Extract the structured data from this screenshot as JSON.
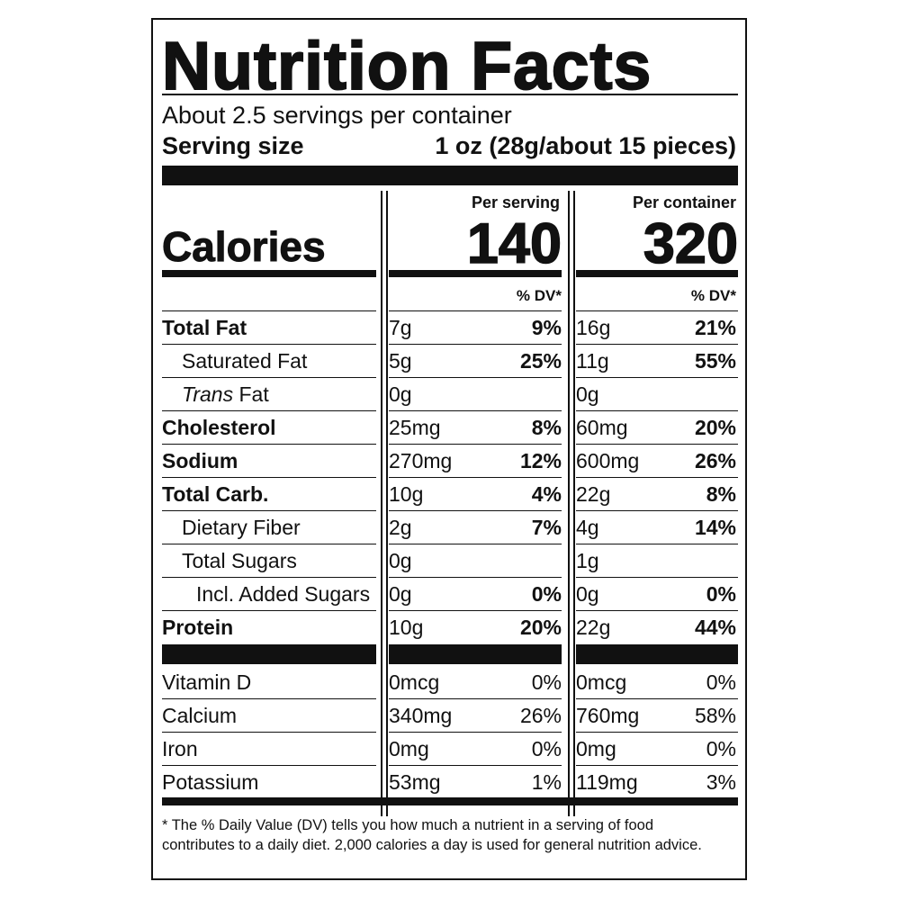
{
  "label": {
    "title": "Nutrition Facts",
    "servings_per_container": "About 2.5 servings per container",
    "serving_size_label": "Serving size",
    "serving_size_value": "1 oz (28g/about 15 pieces)",
    "per_serving_header": "Per serving",
    "per_container_header": "Per container",
    "calories_label": "Calories",
    "calories_per_serving": "140",
    "calories_per_container": "320",
    "dv_header": "% DV*",
    "nutrients": [
      {
        "name": "Total Fat",
        "serving_amount": "7g",
        "serving_dv": "9%",
        "container_amount": "16g",
        "container_dv": "21%"
      },
      {
        "name": "Saturated Fat",
        "serving_amount": "5g",
        "serving_dv": "25%",
        "container_amount": "11g",
        "container_dv": "55%"
      },
      {
        "name_italic": "Trans",
        "name": " Fat",
        "serving_amount": "0g",
        "serving_dv": "",
        "container_amount": "0g",
        "container_dv": ""
      },
      {
        "name": "Cholesterol",
        "serving_amount": "25mg",
        "serving_dv": "8%",
        "container_amount": "60mg",
        "container_dv": "20%"
      },
      {
        "name": "Sodium",
        "serving_amount": "270mg",
        "serving_dv": "12%",
        "container_amount": "600mg",
        "container_dv": "26%"
      },
      {
        "name": "Total Carb.",
        "serving_amount": "10g",
        "serving_dv": "4%",
        "container_amount": "22g",
        "container_dv": "8%"
      },
      {
        "name": "Dietary Fiber",
        "serving_amount": "2g",
        "serving_dv": "7%",
        "container_amount": "4g",
        "container_dv": "14%"
      },
      {
        "name": "Total Sugars",
        "serving_amount": "0g",
        "serving_dv": "",
        "container_amount": "1g",
        "container_dv": ""
      },
      {
        "name": "Incl. Added Sugars",
        "serving_amount": "0g",
        "serving_dv": "0%",
        "container_amount": "0g",
        "container_dv": "0%"
      },
      {
        "name": "Protein",
        "serving_amount": "10g",
        "serving_dv": "20%",
        "container_amount": "22g",
        "container_dv": "44%"
      }
    ],
    "micronutrients": [
      {
        "name": "Vitamin D",
        "serving_amount": "0mcg",
        "serving_dv": "0%",
        "container_amount": "0mcg",
        "container_dv": "0%"
      },
      {
        "name": "Calcium",
        "serving_amount": "340mg",
        "serving_dv": "26%",
        "container_amount": "760mg",
        "container_dv": "58%"
      },
      {
        "name": "Iron",
        "serving_amount": "0mg",
        "serving_dv": "0%",
        "container_amount": "0mg",
        "container_dv": "0%"
      },
      {
        "name": "Potassium",
        "serving_amount": "53mg",
        "serving_dv": "1%",
        "container_amount": "119mg",
        "container_dv": "3%"
      }
    ],
    "footnote": "* The % Daily Value (DV) tells you how much a nutrient in a serving of food contributes to a daily diet. 2,000 calories a day is used for general nutrition advice."
  }
}
